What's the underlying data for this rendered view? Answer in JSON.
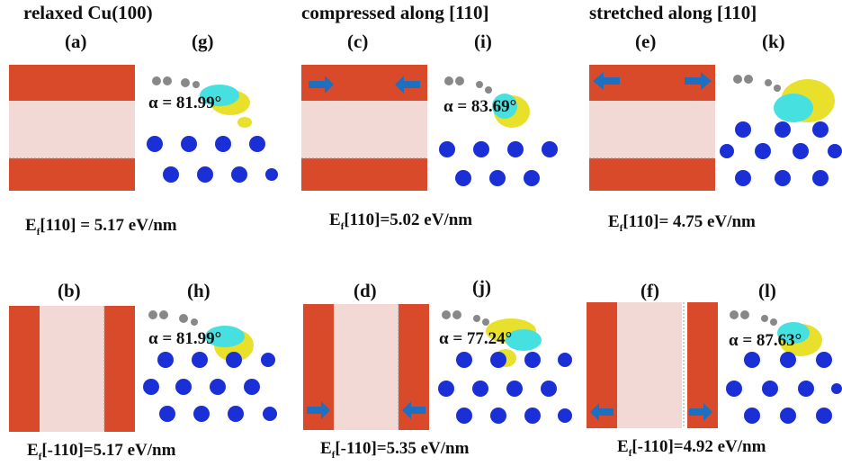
{
  "headers": [
    "relaxed Cu(100)",
    "compressed along [110]",
    "stretched along [110]"
  ],
  "panel_labels": {
    "a": "(a)",
    "b": "(b)",
    "c": "(c)",
    "d": "(d)",
    "e": "(e)",
    "f": "(f)",
    "g": "(g)",
    "h": "(h)",
    "i": "(i)",
    "j": "(j)",
    "k": "(k)",
    "l": "(l)"
  },
  "angles": {
    "g": "α = 81.99°",
    "h": "α = 81.99°",
    "i": "α = 83.69°",
    "j": "α = 77.24°",
    "k": "",
    "l": "α = 87.63°"
  },
  "energies": {
    "top": [
      {
        "pre": "E",
        "sub": "f",
        "post": "[110] = 5.17 eV/nm"
      },
      {
        "pre": "E",
        "sub": "f",
        "post": "[110]=5.02 eV/nm"
      },
      {
        "pre": "E",
        "sub": "f",
        "post": "[110]= 4.75 eV/nm"
      }
    ],
    "bottom": [
      {
        "pre": "E",
        "sub": "f",
        "post": "[-110]=5.17 eV/nm"
      },
      {
        "pre": "E",
        "sub": "f",
        "post": "[-110]=5.35 eV/nm"
      },
      {
        "pre": "E",
        "sub": "f",
        "post": "[-110]=4.92 eV/nm"
      }
    ]
  },
  "colors": {
    "copper": "#d94a2a",
    "graphene": "#f2d9d6",
    "cu_atom": "#1a2fd6",
    "charge_yellow": "#e8e02a",
    "charge_cyan": "#46e0e0",
    "arrow": "#1f6fc0",
    "carbon": "#888888"
  }
}
